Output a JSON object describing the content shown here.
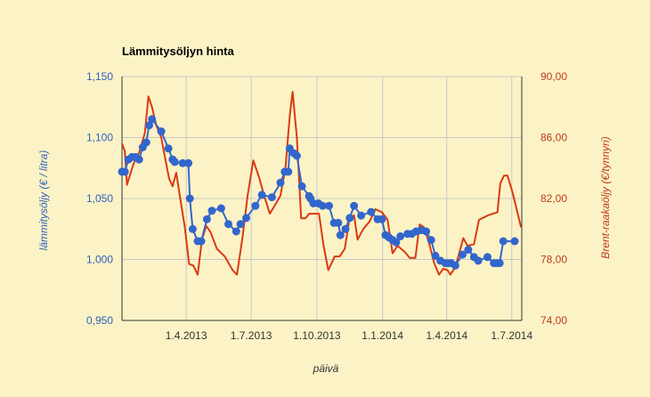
{
  "chart_data": {
    "type": "line",
    "title": "Lämmitysöljyn hinta",
    "xlabel": "päivä",
    "y_left_label": "lämmitysöljy (€ / litra)",
    "y_right_label": "Brent-raakaöljy (€/tynnyri)",
    "x_range": [
      "2013-01-01",
      "2014-07-15"
    ],
    "y_left_range": [
      0.95,
      1.15
    ],
    "y_right_range": [
      74,
      90
    ],
    "y_left_ticks": [
      "0,950",
      "1,000",
      "1,050",
      "1,100",
      "1,150"
    ],
    "y_right_ticks": [
      "74,00",
      "78,00",
      "82,00",
      "86,00",
      "90,00"
    ],
    "x_ticks": [
      {
        "date": "2013-04-01",
        "label": "1.4.2013"
      },
      {
        "date": "2013-07-01",
        "label": "1.7.2013"
      },
      {
        "date": "2013-10-01",
        "label": "1.10.2013"
      },
      {
        "date": "2014-01-01",
        "label": "1.1.2014"
      },
      {
        "date": "2014-04-01",
        "label": "1.4.2014"
      },
      {
        "date": "2014-07-01",
        "label": "1.7.2014"
      }
    ],
    "grid": true,
    "legend": "none",
    "series": [
      {
        "axis": "left",
        "color": "#3366cc",
        "markers": true,
        "points": [
          [
            "2013-01-01",
            1.072
          ],
          [
            "2013-01-05",
            1.072
          ],
          [
            "2013-01-10",
            1.082
          ],
          [
            "2013-01-15",
            1.084
          ],
          [
            "2013-01-20",
            1.084
          ],
          [
            "2013-01-25",
            1.082
          ],
          [
            "2013-01-30",
            1.092
          ],
          [
            "2013-02-04",
            1.096
          ],
          [
            "2013-02-08",
            1.11
          ],
          [
            "2013-02-12",
            1.115
          ],
          [
            "2013-02-25",
            1.105
          ],
          [
            "2013-03-07",
            1.091
          ],
          [
            "2013-03-13",
            1.082
          ],
          [
            "2013-03-16",
            1.08
          ],
          [
            "2013-03-27",
            1.079
          ],
          [
            "2013-04-04",
            1.079
          ],
          [
            "2013-04-06",
            1.05
          ],
          [
            "2013-04-10",
            1.025
          ],
          [
            "2013-04-17",
            1.015
          ],
          [
            "2013-04-22",
            1.015
          ],
          [
            "2013-04-30",
            1.033
          ],
          [
            "2013-05-07",
            1.04
          ],
          [
            "2013-05-20",
            1.042
          ],
          [
            "2013-05-30",
            1.029
          ],
          [
            "2013-06-10",
            1.023
          ],
          [
            "2013-06-16",
            1.029
          ],
          [
            "2013-06-24",
            1.034
          ],
          [
            "2013-07-07",
            1.044
          ],
          [
            "2013-07-16",
            1.053
          ],
          [
            "2013-07-30",
            1.051
          ],
          [
            "2013-08-11",
            1.063
          ],
          [
            "2013-08-17",
            1.072
          ],
          [
            "2013-08-22",
            1.072
          ],
          [
            "2013-08-24",
            1.091
          ],
          [
            "2013-08-30",
            1.087
          ],
          [
            "2013-09-03",
            1.085
          ],
          [
            "2013-09-10",
            1.06
          ],
          [
            "2013-09-20",
            1.052
          ],
          [
            "2013-09-22",
            1.05
          ],
          [
            "2013-09-26",
            1.046
          ],
          [
            "2013-10-03",
            1.046
          ],
          [
            "2013-10-09",
            1.044
          ],
          [
            "2013-10-18",
            1.044
          ],
          [
            "2013-10-25",
            1.03
          ],
          [
            "2013-10-31",
            1.03
          ],
          [
            "2013-11-03",
            1.02
          ],
          [
            "2013-11-10",
            1.025
          ],
          [
            "2013-11-16",
            1.034
          ],
          [
            "2013-11-22",
            1.044
          ],
          [
            "2013-12-02",
            1.036
          ],
          [
            "2013-12-16",
            1.039
          ],
          [
            "2013-12-25",
            1.033
          ],
          [
            "2013-12-31",
            1.033
          ],
          [
            "2014-01-05",
            1.02
          ],
          [
            "2014-01-10",
            1.018
          ],
          [
            "2014-01-15",
            1.016
          ],
          [
            "2014-01-20",
            1.014
          ],
          [
            "2014-01-26",
            1.019
          ],
          [
            "2014-02-05",
            1.021
          ],
          [
            "2014-02-11",
            1.021
          ],
          [
            "2014-02-17",
            1.023
          ],
          [
            "2014-02-24",
            1.024
          ],
          [
            "2014-03-03",
            1.023
          ],
          [
            "2014-03-10",
            1.016
          ],
          [
            "2014-03-16",
            1.003
          ],
          [
            "2014-03-23",
            0.999
          ],
          [
            "2014-03-30",
            0.997
          ],
          [
            "2014-04-03",
            0.997
          ],
          [
            "2014-04-07",
            0.997
          ],
          [
            "2014-04-13",
            0.995
          ],
          [
            "2014-04-23",
            1.004
          ],
          [
            "2014-05-01",
            1.008
          ],
          [
            "2014-05-09",
            1.002
          ],
          [
            "2014-05-15",
            0.999
          ],
          [
            "2014-05-28",
            1.002
          ],
          [
            "2014-06-06",
            0.997
          ],
          [
            "2014-06-10",
            0.997
          ],
          [
            "2014-06-14",
            0.997
          ],
          [
            "2014-06-19",
            1.015
          ],
          [
            "2014-07-05",
            1.015
          ]
        ]
      },
      {
        "axis": "right",
        "color": "#dc3912",
        "markers": false,
        "points": [
          [
            "2013-01-01",
            85.6
          ],
          [
            "2013-01-05",
            85.1
          ],
          [
            "2013-01-08",
            82.9
          ],
          [
            "2013-01-12",
            83.5
          ],
          [
            "2013-01-16",
            84.1
          ],
          [
            "2013-01-20",
            84.6
          ],
          [
            "2013-01-25",
            85.0
          ],
          [
            "2013-02-02",
            86.3
          ],
          [
            "2013-02-07",
            88.7
          ],
          [
            "2013-02-12",
            88.0
          ],
          [
            "2013-02-18",
            86.8
          ],
          [
            "2013-02-25",
            86.0
          ],
          [
            "2013-03-01",
            85.0
          ],
          [
            "2013-03-08",
            83.3
          ],
          [
            "2013-03-13",
            82.8
          ],
          [
            "2013-03-18",
            83.7
          ],
          [
            "2013-03-24",
            81.9
          ],
          [
            "2013-03-30",
            80.1
          ],
          [
            "2013-04-05",
            77.7
          ],
          [
            "2013-04-11",
            77.6
          ],
          [
            "2013-04-17",
            77.0
          ],
          [
            "2013-04-23",
            79.3
          ],
          [
            "2013-04-29",
            80.2
          ],
          [
            "2013-05-05",
            79.8
          ],
          [
            "2013-05-14",
            78.7
          ],
          [
            "2013-05-25",
            78.2
          ],
          [
            "2013-06-05",
            77.3
          ],
          [
            "2013-06-11",
            77.0
          ],
          [
            "2013-06-19",
            79.5
          ],
          [
            "2013-06-26",
            82.2
          ],
          [
            "2013-07-04",
            84.5
          ],
          [
            "2013-07-12",
            83.4
          ],
          [
            "2013-07-19",
            82.2
          ],
          [
            "2013-07-27",
            81.0
          ],
          [
            "2013-08-05",
            81.7
          ],
          [
            "2013-08-11",
            82.2
          ],
          [
            "2013-08-18",
            84.0
          ],
          [
            "2013-08-24",
            87.4
          ],
          [
            "2013-08-28",
            89.0
          ],
          [
            "2013-09-03",
            86.0
          ],
          [
            "2013-09-09",
            80.7
          ],
          [
            "2013-09-15",
            80.7
          ],
          [
            "2013-09-20",
            81.0
          ],
          [
            "2013-09-29",
            81.0
          ],
          [
            "2013-10-04",
            81.0
          ],
          [
            "2013-10-10",
            79.0
          ],
          [
            "2013-10-17",
            77.3
          ],
          [
            "2013-10-26",
            78.2
          ],
          [
            "2013-11-02",
            78.2
          ],
          [
            "2013-11-09",
            78.7
          ],
          [
            "2013-11-15",
            80.5
          ],
          [
            "2013-11-22",
            80.9
          ],
          [
            "2013-11-27",
            79.3
          ],
          [
            "2013-12-05",
            80.0
          ],
          [
            "2013-12-14",
            80.5
          ],
          [
            "2013-12-22",
            81.3
          ],
          [
            "2013-12-31",
            81.1
          ],
          [
            "2014-01-08",
            80.6
          ],
          [
            "2014-01-15",
            78.4
          ],
          [
            "2014-01-22",
            78.9
          ],
          [
            "2014-02-01",
            78.5
          ],
          [
            "2014-02-08",
            78.1
          ],
          [
            "2014-02-16",
            78.1
          ],
          [
            "2014-02-22",
            80.3
          ],
          [
            "2014-02-28",
            80.1
          ],
          [
            "2014-03-07",
            79.1
          ],
          [
            "2014-03-14",
            77.8
          ],
          [
            "2014-03-21",
            77.0
          ],
          [
            "2014-03-27",
            77.4
          ],
          [
            "2014-04-02",
            77.3
          ],
          [
            "2014-04-06",
            77.0
          ],
          [
            "2014-04-13",
            77.5
          ],
          [
            "2014-04-24",
            79.4
          ],
          [
            "2014-04-30",
            78.9
          ],
          [
            "2014-05-09",
            79.0
          ],
          [
            "2014-05-16",
            80.6
          ],
          [
            "2014-05-29",
            80.9
          ],
          [
            "2014-06-11",
            81.1
          ],
          [
            "2014-06-15",
            83.0
          ],
          [
            "2014-06-20",
            83.5
          ],
          [
            "2014-06-25",
            83.5
          ],
          [
            "2014-07-02",
            82.4
          ],
          [
            "2014-07-14",
            80.1
          ]
        ]
      }
    ]
  }
}
